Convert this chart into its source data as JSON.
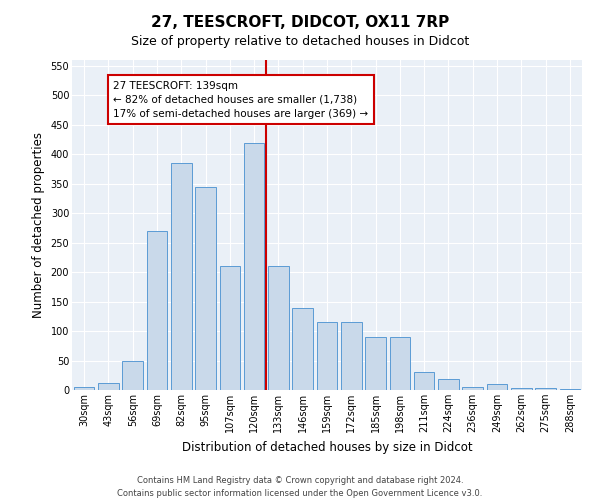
{
  "title": "27, TEESCROFT, DIDCOT, OX11 7RP",
  "subtitle": "Size of property relative to detached houses in Didcot",
  "xlabel": "Distribution of detached houses by size in Didcot",
  "ylabel": "Number of detached properties",
  "categories": [
    "30sqm",
    "43sqm",
    "56sqm",
    "69sqm",
    "82sqm",
    "95sqm",
    "107sqm",
    "120sqm",
    "133sqm",
    "146sqm",
    "159sqm",
    "172sqm",
    "185sqm",
    "198sqm",
    "211sqm",
    "224sqm",
    "236sqm",
    "249sqm",
    "262sqm",
    "275sqm",
    "288sqm"
  ],
  "values": [
    5,
    12,
    50,
    270,
    385,
    345,
    210,
    420,
    210,
    140,
    115,
    115,
    90,
    90,
    30,
    18,
    5,
    10,
    3,
    3,
    2
  ],
  "bar_color": "#c9d9ea",
  "bar_edge_color": "#5b9bd5",
  "vline_x_index": 8,
  "vline_color": "#cc0000",
  "annotation_line1": "27 TEESCROFT: 139sqm",
  "annotation_line2": "← 82% of detached houses are smaller (1,738)",
  "annotation_line3": "17% of semi-detached houses are larger (369) →",
  "annotation_box_color": "#cc0000",
  "ylim": [
    0,
    560
  ],
  "yticks": [
    0,
    50,
    100,
    150,
    200,
    250,
    300,
    350,
    400,
    450,
    500,
    550
  ],
  "footer1": "Contains HM Land Registry data © Crown copyright and database right 2024.",
  "footer2": "Contains public sector information licensed under the Open Government Licence v3.0.",
  "bg_color": "#eaf0f7",
  "grid_color": "#ffffff",
  "title_fontsize": 11,
  "subtitle_fontsize": 9,
  "tick_fontsize": 7,
  "label_fontsize": 8.5,
  "annot_fontsize": 7.5,
  "footer_fontsize": 6
}
